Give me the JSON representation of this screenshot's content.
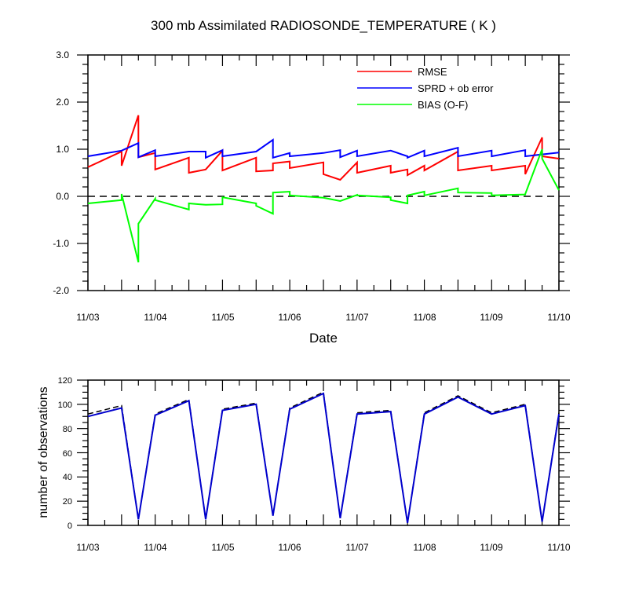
{
  "chart_data": [
    {
      "type": "line",
      "title": "300 mb Assimilated RADIOSONDE_TEMPERATURE ( K )",
      "xlabel": "Date",
      "ylabel": "",
      "x_ticks": [
        "11/03",
        "11/04",
        "11/05",
        "11/06",
        "11/07",
        "11/08",
        "11/09",
        "11/10"
      ],
      "xlim_days": [
        0,
        7
      ],
      "ylim": [
        -2.0,
        3.0
      ],
      "y_ticks": [
        "-2.0",
        "-1.0",
        "0.0",
        "1.0",
        "2.0",
        "3.0"
      ],
      "reference_line": 0.0,
      "legend_position": "top-right",
      "series": [
        {
          "name": "RMSE",
          "color": "#ff0000",
          "x": [
            0,
            0.5,
            0.5,
            0.75,
            0.75,
            1.0,
            1.0,
            1.5,
            1.5,
            1.75,
            2.0,
            2.0,
            2.5,
            2.5,
            2.75,
            2.75,
            3.0,
            3.0,
            3.5,
            3.5,
            3.75,
            3.75,
            4.0,
            4.0,
            4.5,
            4.5,
            4.75,
            4.75,
            5.0,
            5.0,
            5.5,
            5.5,
            6.0,
            6.0,
            6.5,
            6.5,
            6.75,
            6.75,
            7.0
          ],
          "values": [
            0.62,
            0.95,
            0.65,
            1.72,
            0.83,
            0.92,
            0.57,
            0.82,
            0.5,
            0.57,
            0.97,
            0.55,
            0.82,
            0.53,
            0.55,
            0.7,
            0.74,
            0.6,
            0.72,
            0.47,
            0.35,
            0.35,
            0.72,
            0.5,
            0.65,
            0.5,
            0.57,
            0.45,
            0.65,
            0.55,
            0.95,
            0.55,
            0.65,
            0.55,
            0.65,
            0.47,
            1.25,
            0.85,
            0.8
          ]
        },
        {
          "name": "SPRD + ob error",
          "color": "#0000ff",
          "x": [
            0,
            0.5,
            0.75,
            0.75,
            1.0,
            1.0,
            1.5,
            1.75,
            1.75,
            2.0,
            2.0,
            2.5,
            2.75,
            2.75,
            3.0,
            3.0,
            3.5,
            3.75,
            3.75,
            4.0,
            4.0,
            4.5,
            4.75,
            4.75,
            5.0,
            5.0,
            5.5,
            5.5,
            6.0,
            6.0,
            6.5,
            6.5,
            7.0
          ],
          "values": [
            0.85,
            0.97,
            1.13,
            0.83,
            0.98,
            0.85,
            0.95,
            0.95,
            0.82,
            0.98,
            0.85,
            0.95,
            1.2,
            0.82,
            0.92,
            0.85,
            0.92,
            0.98,
            0.83,
            0.97,
            0.85,
            0.97,
            0.85,
            0.82,
            0.97,
            0.85,
            1.03,
            0.85,
            0.97,
            0.85,
            0.98,
            0.85,
            0.93
          ]
        },
        {
          "name": "BIAS (O-F)",
          "color": "#00ff00",
          "x": [
            0,
            0.5,
            0.5,
            0.75,
            0.75,
            1.0,
            1.0,
            1.5,
            1.5,
            1.75,
            2.0,
            2.0,
            2.5,
            2.5,
            2.75,
            2.75,
            3.0,
            3.0,
            3.5,
            3.75,
            3.75,
            4.0,
            4.0,
            4.5,
            4.5,
            4.75,
            4.75,
            5.0,
            5.0,
            5.5,
            5.5,
            6.0,
            6.0,
            6.5,
            6.5,
            6.75,
            6.75,
            7.0
          ],
          "values": [
            -0.15,
            -0.08,
            0.05,
            -1.4,
            -0.58,
            -0.05,
            -0.08,
            -0.28,
            -0.15,
            -0.18,
            -0.17,
            -0.02,
            -0.15,
            -0.2,
            -0.37,
            0.08,
            0.1,
            0.02,
            -0.03,
            -0.1,
            -0.1,
            0.03,
            0.02,
            -0.02,
            -0.08,
            -0.15,
            0.02,
            0.1,
            0.02,
            0.17,
            0.08,
            0.07,
            0.02,
            0.04,
            0.05,
            1.0,
            0.8,
            0.13
          ]
        }
      ]
    },
    {
      "type": "line",
      "title": "",
      "xlabel": "",
      "ylabel": "number of observations",
      "x_ticks": [
        "11/03",
        "11/04",
        "11/05",
        "11/06",
        "11/07",
        "11/08",
        "11/09",
        "11/10"
      ],
      "xlim_days": [
        0,
        7
      ],
      "ylim": [
        0,
        120
      ],
      "y_ticks": [
        "0",
        "20",
        "40",
        "60",
        "80",
        "100",
        "120"
      ],
      "series": [
        {
          "name": "number of observations",
          "color": "#0000cc",
          "style": "solid",
          "x": [
            0,
            0.5,
            0.75,
            1.0,
            1.5,
            1.75,
            2.0,
            2.5,
            2.75,
            3.0,
            3.5,
            3.75,
            4.0,
            4.5,
            4.75,
            5.0,
            5.5,
            6.0,
            6.5,
            6.75,
            7.0
          ],
          "values": [
            90,
            97,
            5,
            91,
            103,
            5,
            95,
            100,
            8,
            96,
            109,
            6,
            92,
            94,
            2,
            92,
            106,
            92,
            99,
            3,
            92
          ]
        },
        {
          "name": "number of observations (dashed)",
          "color": "#000000",
          "style": "dashed",
          "x": [
            0,
            0.5,
            0.75,
            1.0,
            1.5,
            1.75,
            2.0,
            2.5,
            2.75,
            3.0,
            3.5,
            3.75,
            4.0,
            4.5,
            4.75,
            5.0,
            5.5,
            6.0,
            6.5,
            6.75,
            7.0
          ],
          "values": [
            92,
            99,
            5,
            92,
            104,
            5,
            96,
            101,
            8,
            97,
            110,
            6,
            93,
            95,
            2,
            93,
            107,
            93,
            100,
            3,
            93
          ]
        }
      ]
    }
  ]
}
